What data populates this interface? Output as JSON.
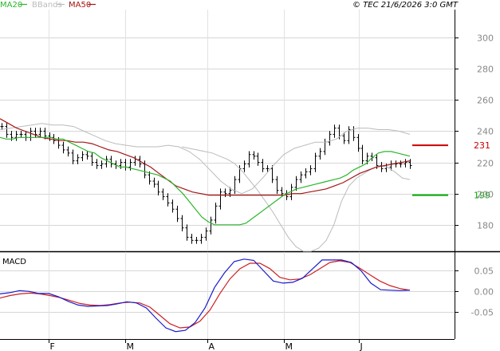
{
  "header": {
    "legend": [
      {
        "label": "MA20",
        "color": "#2db52d"
      },
      {
        "label": "BBands",
        "color": "#bbbbbb"
      },
      {
        "label": "MA50",
        "color": "#a31515"
      }
    ],
    "copyright": "© TEC 21/6/2026 3:0 GMT"
  },
  "chart_data": [
    {
      "type": "line",
      "panel": "price",
      "y_ticks": [
        180,
        200,
        220,
        240,
        260,
        280,
        300
      ],
      "ylim": [
        163,
        318
      ],
      "grid": true,
      "levels": [
        {
          "label": "231",
          "value": 231,
          "color": "#cc0000"
        },
        {
          "label": "199",
          "value": 199,
          "color": "#00aa00"
        }
      ],
      "price_bars": [
        243,
        238,
        236,
        238,
        238,
        236,
        240,
        238,
        240,
        237,
        236,
        234,
        231,
        228,
        226,
        221,
        223,
        225,
        224,
        220,
        218,
        219,
        222,
        219,
        218,
        220,
        217,
        220,
        222,
        219,
        212,
        208,
        206,
        201,
        198,
        194,
        190,
        184,
        178,
        172,
        170,
        170,
        172,
        176,
        183,
        192,
        201,
        200,
        202,
        209,
        216,
        219,
        225,
        224,
        220,
        216,
        216,
        209,
        202,
        200,
        198,
        204,
        209,
        212,
        214,
        216,
        224,
        227,
        233,
        238,
        242,
        237,
        234,
        241,
        236,
        229,
        221,
        224,
        223,
        218,
        216,
        217,
        219,
        219,
        219,
        220,
        218
      ],
      "series": [
        {
          "name": "MA20",
          "color": "#2db52d",
          "values": [
            236,
            235,
            235,
            236,
            236,
            236,
            236,
            236,
            236,
            235,
            235,
            233,
            231,
            229,
            227,
            226,
            223,
            221,
            219,
            217,
            217,
            216,
            215,
            214,
            213,
            212,
            210,
            208,
            204,
            200,
            195,
            190,
            185,
            182,
            180,
            180,
            180,
            180,
            180,
            181,
            184,
            187,
            190,
            193,
            196,
            199,
            201,
            203,
            204,
            205,
            206,
            207,
            208,
            209,
            210,
            212,
            215,
            217,
            219,
            223,
            226,
            227,
            227,
            226,
            225,
            224
          ]
        },
        {
          "name": "MA50",
          "color": "#a31515",
          "values": [
            248,
            245,
            242,
            240,
            238,
            236,
            235,
            234,
            234,
            233,
            233,
            232,
            230,
            228,
            227,
            225,
            223,
            220,
            217,
            213,
            209,
            205,
            203,
            201,
            200,
            199,
            199,
            199,
            199,
            199,
            199,
            199,
            199,
            199,
            199,
            200,
            200,
            201,
            202,
            203,
            205,
            207,
            210,
            213,
            215,
            217,
            218,
            219,
            220,
            221
          ]
        },
        {
          "name": "BBands upper",
          "color": "#bbbbbb",
          "values": [
            241,
            242,
            243,
            244,
            245,
            244,
            244,
            243,
            240,
            237,
            234,
            232,
            231,
            230,
            230,
            230,
            231,
            230,
            227,
            222,
            215,
            208,
            203,
            200,
            203,
            210,
            218,
            225,
            229,
            231,
            233,
            233,
            235,
            240,
            242,
            242,
            241,
            241,
            240,
            238
          ]
        },
        {
          "name": "BBands lower",
          "color": "#bbbbbb",
          "values": [
            230,
            229,
            228,
            227,
            226,
            224,
            222,
            219,
            214,
            208,
            202,
            195,
            188,
            180,
            172,
            166,
            163,
            163,
            165,
            170,
            180,
            195,
            205,
            210,
            213,
            216,
            218,
            217,
            214,
            210,
            209
          ]
        }
      ]
    },
    {
      "type": "line",
      "panel": "macd",
      "title": "MACD",
      "y_ticks": [
        "0.05",
        "0.00",
        "-0.05"
      ],
      "y_tick_values": [
        0.05,
        0.0,
        -0.05
      ],
      "ylim": [
        -0.115,
        0.095
      ],
      "grid": true,
      "x_tick_labels": [
        "F",
        "M",
        "A",
        "M",
        "J"
      ],
      "series": [
        {
          "name": "MACD",
          "color": "#1a1acc",
          "values": [
            -0.006,
            -0.003,
            0.002,
            0.0,
            -0.005,
            -0.005,
            -0.013,
            -0.024,
            -0.033,
            -0.036,
            -0.035,
            -0.034,
            -0.03,
            -0.025,
            -0.028,
            -0.04,
            -0.065,
            -0.088,
            -0.097,
            -0.094,
            -0.075,
            -0.04,
            0.01,
            0.045,
            0.072,
            0.078,
            0.075,
            0.05,
            0.025,
            0.02,
            0.022,
            0.032,
            0.054,
            0.076,
            0.076,
            0.076,
            0.07,
            0.05,
            0.02,
            0.004,
            0.003,
            0.002,
            0.003
          ]
        },
        {
          "name": "Signal",
          "color": "#cc2020",
          "values": [
            -0.016,
            -0.01,
            -0.006,
            -0.004,
            -0.006,
            -0.01,
            -0.015,
            -0.022,
            -0.029,
            -0.033,
            -0.034,
            -0.032,
            -0.028,
            -0.026,
            -0.028,
            -0.038,
            -0.058,
            -0.078,
            -0.088,
            -0.086,
            -0.072,
            -0.045,
            -0.005,
            0.03,
            0.055,
            0.068,
            0.068,
            0.055,
            0.034,
            0.028,
            0.03,
            0.04,
            0.055,
            0.07,
            0.074,
            0.07,
            0.056,
            0.04,
            0.025,
            0.014,
            0.007,
            0.003
          ]
        }
      ]
    }
  ]
}
